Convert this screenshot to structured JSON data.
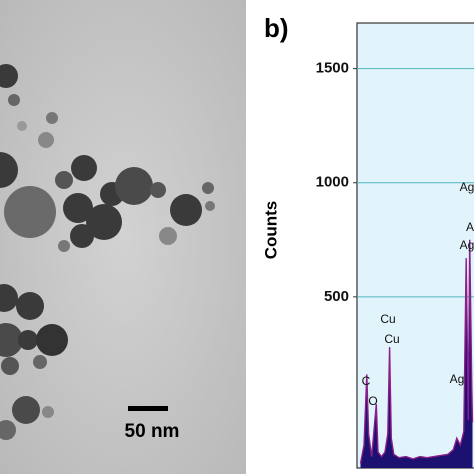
{
  "micrograph": {
    "scale_bar": "50 nm"
  },
  "chart_data": {
    "type": "area",
    "panel_label": "b)",
    "ylabel": "Counts",
    "x": [
      0.1,
      0.2,
      0.28,
      0.33,
      0.42,
      0.5,
      0.55,
      0.6,
      0.7,
      0.8,
      0.88,
      0.93,
      0.98,
      1.05,
      1.2,
      1.4,
      1.6,
      1.8,
      2.0,
      2.2,
      2.4,
      2.6,
      2.75,
      2.85,
      2.95,
      3.05,
      3.12,
      3.18,
      3.22,
      3.28,
      3.3
    ],
    "values": [
      -230,
      -150,
      160,
      -100,
      -200,
      -60,
      30,
      -180,
      -200,
      -180,
      -100,
      280,
      -120,
      -190,
      -205,
      -200,
      -210,
      -200,
      -205,
      -200,
      -195,
      -190,
      -170,
      -120,
      -150,
      -90,
      670,
      -40,
      750,
      100,
      -50
    ],
    "xlim": [
      0,
      3.3
    ],
    "ylim": [
      -250,
      1700
    ],
    "yticks": [
      500,
      1000,
      1500
    ],
    "grid": true,
    "color": "#1c1070",
    "line_color": "#8a1e8a",
    "grid_color": "#4fb4bd",
    "background": "#e2f4fb",
    "peak_labels": [
      "C",
      "O",
      "Cu",
      "Cu",
      "Ag",
      "Ag",
      "A",
      "Ag"
    ]
  }
}
